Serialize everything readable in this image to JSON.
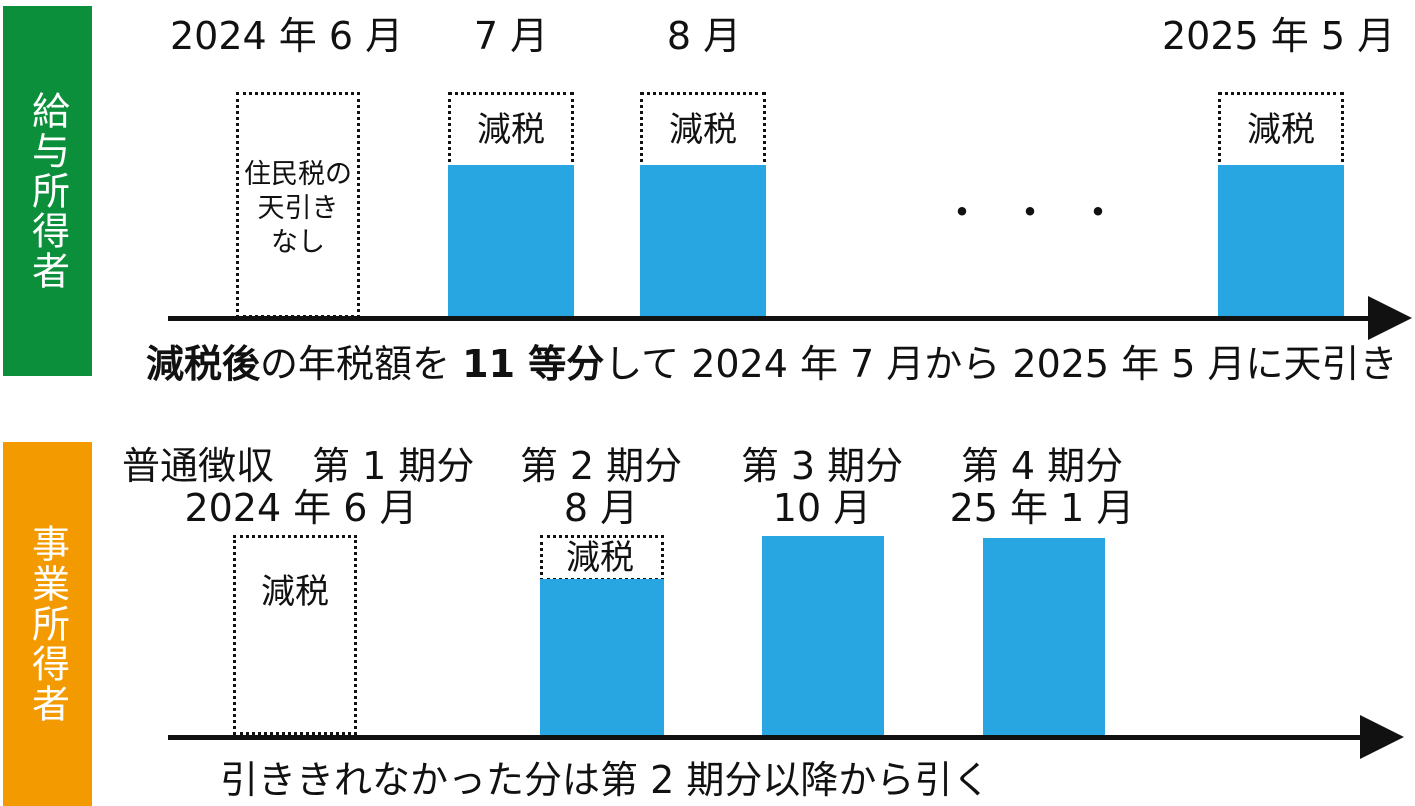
{
  "colors": {
    "salary_label_bg": "#0b8f3a",
    "business_label_bg": "#f39a00",
    "bar_fill": "#27a6e1",
    "axis": "#111111"
  },
  "salary": {
    "label": "給与所得者",
    "months": {
      "m1": "2024 年 6 月",
      "m2": "7 月",
      "m3": "8 月",
      "m4": "2025 年 5 月"
    },
    "no_deduction_box": [
      "住民税の",
      "天引き",
      "なし"
    ],
    "reduction_label": "減税",
    "ellipsis": "・・・",
    "note": {
      "bold1": "減税後",
      "t1": "の年税額を",
      "bold2": "11 等分",
      "t2": "して 2024 年 7 月から 2025 年 5 月に天引き"
    }
  },
  "business": {
    "label": "事業所得者",
    "periods": [
      {
        "line1": "普通徴収　第 1 期分",
        "line2": "2024 年 6 月"
      },
      {
        "line1": "第 2 期分",
        "line2": "8 月"
      },
      {
        "line1": "第 3 期分",
        "line2": "10 月"
      },
      {
        "line1": "第 4 期分",
        "line2": "25 年 1 月"
      }
    ],
    "reduction_label": "減税",
    "note": "引ききれなかった分は第 2 期分以降から引く"
  }
}
